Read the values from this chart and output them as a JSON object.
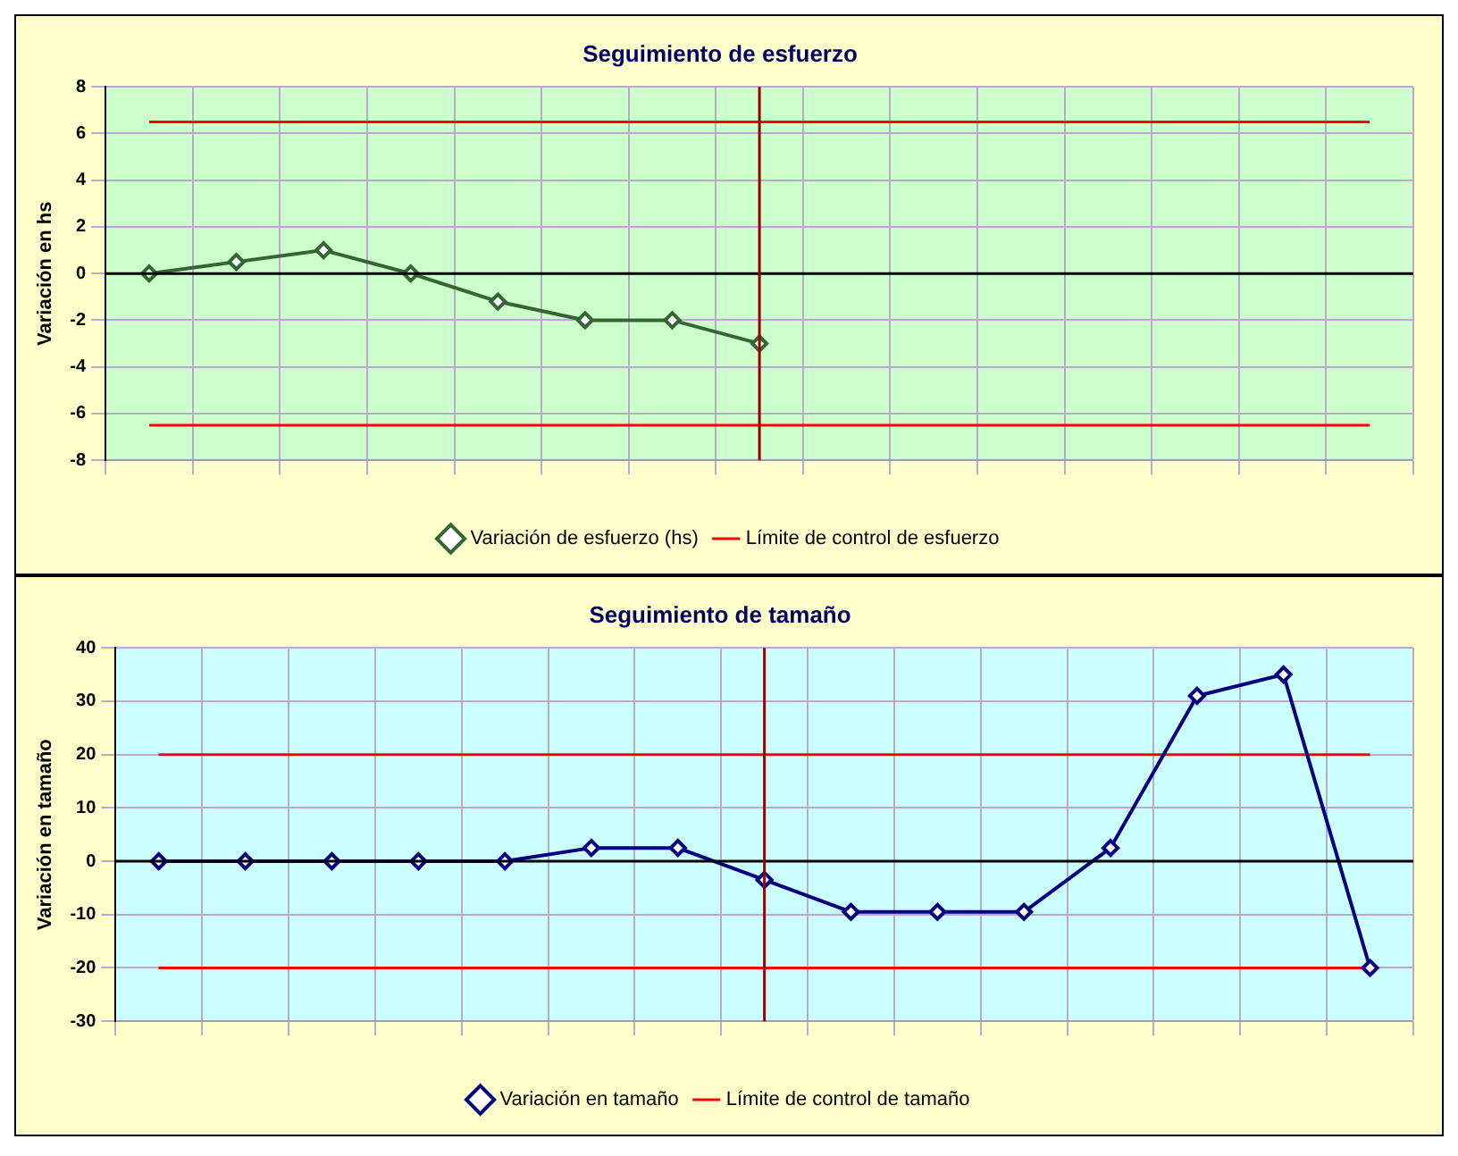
{
  "chart_data": [
    {
      "type": "line",
      "title": "Seguimiento de esfuerzo",
      "ylabel": "Variación en hs",
      "categories": [
        null,
        null,
        null,
        null,
        null,
        null,
        null,
        null,
        null,
        null,
        null,
        null,
        null,
        null,
        null
      ],
      "ylim": [
        -8,
        8
      ],
      "yticks": [
        -8,
        -6,
        -4,
        -2,
        0,
        2,
        4,
        6,
        8
      ],
      "grid": true,
      "legend": "bottom",
      "marker": "diamond",
      "series": [
        {
          "name": "Variación de esfuerzo (hs)",
          "color": "#336633",
          "values": [
            0,
            0.5,
            1,
            0,
            -1.2,
            -2,
            -2,
            -3,
            null,
            null,
            null,
            null,
            null,
            null,
            null
          ]
        },
        {
          "name": "Límite de control de esfuerzo",
          "color": "#ff0000",
          "marker": "none",
          "values": [
            6.5,
            6.5,
            6.5,
            6.5,
            6.5,
            6.5,
            6.5,
            6.5,
            6.5,
            6.5,
            6.5,
            6.5,
            6.5,
            6.5,
            6.5
          ]
        },
        {
          "color": "#ff0000",
          "marker": "none",
          "values": [
            -6.5,
            -6.5,
            -6.5,
            -6.5,
            -6.5,
            -6.5,
            -6.5,
            -6.5,
            -6.5,
            -6.5,
            -6.5,
            -6.5,
            -6.5,
            -6.5,
            -6.5
          ]
        }
      ]
    },
    {
      "type": "line",
      "title": "Seguimiento de tamaño",
      "ylabel": "Variación en tamaño",
      "categories": [
        null,
        null,
        null,
        null,
        null,
        null,
        null,
        null,
        null,
        null,
        null,
        null,
        null,
        null,
        null
      ],
      "ylim": [
        -30,
        40
      ],
      "yticks": [
        -30,
        -20,
        -10,
        0,
        10,
        20,
        30,
        40
      ],
      "grid": true,
      "legend": "bottom",
      "marker": "diamond",
      "series": [
        {
          "name": "Variación en tamaño",
          "color": "#000080",
          "values": [
            0,
            0,
            0,
            0,
            0,
            2.5,
            2.5,
            -3.5,
            -9.5,
            -9.5,
            -9.5,
            2.5,
            31,
            35,
            -20
          ]
        },
        {
          "name": "Límite de control de tamaño",
          "color": "#ff0000",
          "marker": "none",
          "values": [
            20,
            20,
            20,
            20,
            20,
            20,
            20,
            20,
            20,
            20,
            20,
            20,
            20,
            20,
            20
          ]
        },
        {
          "color": "#ff0000",
          "marker": "none",
          "values": [
            -20,
            -20,
            -20,
            -20,
            -20,
            -20,
            -20,
            -20,
            -20,
            -20,
            -20,
            -20,
            -20,
            -20,
            -20
          ]
        }
      ]
    }
  ]
}
